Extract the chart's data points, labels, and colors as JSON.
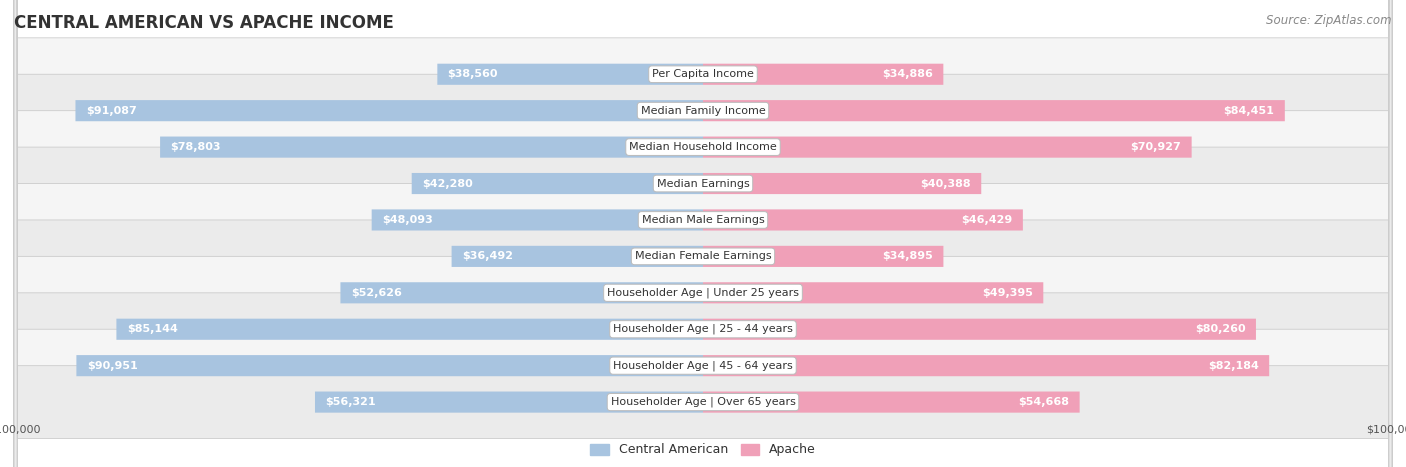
{
  "title": "CENTRAL AMERICAN VS APACHE INCOME",
  "source": "Source: ZipAtlas.com",
  "categories": [
    "Per Capita Income",
    "Median Family Income",
    "Median Household Income",
    "Median Earnings",
    "Median Male Earnings",
    "Median Female Earnings",
    "Householder Age | Under 25 years",
    "Householder Age | 25 - 44 years",
    "Householder Age | 45 - 64 years",
    "Householder Age | Over 65 years"
  ],
  "central_american": [
    38560,
    91087,
    78803,
    42280,
    48093,
    36492,
    52626,
    85144,
    90951,
    56321
  ],
  "apache": [
    34886,
    84451,
    70927,
    40388,
    46429,
    34895,
    49395,
    80260,
    82184,
    54668
  ],
  "max_value": 100000,
  "color_central": "#a8c4e0",
  "color_apache": "#f0a0b8",
  "row_bg_odd": "#f5f5f5",
  "row_bg_even": "#ebebeb",
  "label_color_inner": "#ffffff",
  "label_color_outer": "#555555",
  "title_fontsize": 12,
  "source_fontsize": 8.5,
  "label_fontsize": 8,
  "category_fontsize": 8,
  "axis_fontsize": 8,
  "legend_fontsize": 9,
  "inner_threshold": 20000
}
